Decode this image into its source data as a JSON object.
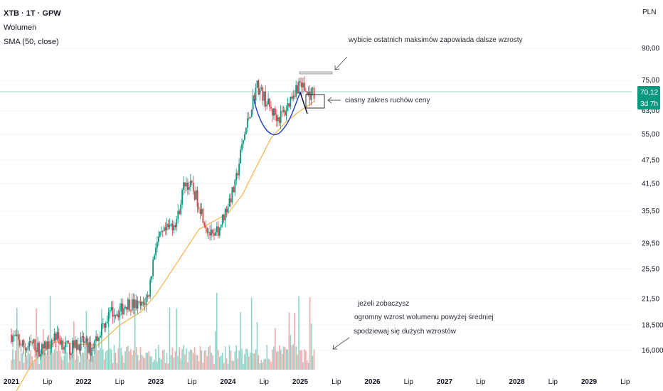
{
  "header": {
    "symbol": "XTB · 1T · GPW",
    "indicator_volume": "Wolumen",
    "indicator_sma": "SMA (50, close)",
    "currency": "PLN"
  },
  "price_badge": {
    "price": "70,12",
    "countdown": "3d 7h"
  },
  "colors": {
    "up": "#089981",
    "down": "#f23645",
    "vol_up": "#8fd3c7",
    "vol_down": "#f7a9a9",
    "sma": "#f7a52a",
    "cup": "#2443c8",
    "last_price_line": "#9fd9cf",
    "badge": "#089981"
  },
  "annotations": [
    {
      "text": "wybicie ostatnich maksimów zapowiada dalsze wzrosty"
    },
    {
      "text": "ciasny zakres ruchów ceny"
    },
    {
      "text": "jeżeli zobaczysz"
    },
    {
      "text": "ogromny wzrost wolumenu powyżej średniej"
    },
    {
      "text": "spodziewaj się dużych wzrostów"
    }
  ],
  "chart_data": {
    "type": "candlestick",
    "title": "",
    "y_scale": "log",
    "y_ticks": [
      "90,00",
      "75,00",
      "63,00",
      "55,00",
      "47,50",
      "41,50",
      "35,50",
      "29,50",
      "25,50",
      "21,50",
      "18,500",
      "16,000"
    ],
    "y_tick_values": [
      90,
      75,
      63,
      55,
      47.5,
      41.5,
      35.5,
      29.5,
      25.5,
      21.5,
      18.5,
      16
    ],
    "x_ticks": [
      "2021",
      "Lip",
      "2022",
      "Lip",
      "2023",
      "Lip",
      "2024",
      "Lip",
      "2025",
      "Lip",
      "2026",
      "Lip",
      "2027",
      "Lip",
      "2028",
      "Lip",
      "2029",
      "Lip"
    ],
    "x_tick_dates": [
      "2021-01",
      "2021-07",
      "2022-01",
      "2022-07",
      "2023-01",
      "2023-07",
      "2024-01",
      "2024-07",
      "2025-01",
      "2025-07",
      "2026-01",
      "2026-07",
      "2027-01",
      "2027-07",
      "2028-01",
      "2028-07",
      "2029-01",
      "2029-07"
    ],
    "last_price": 70.12,
    "price_path_weekly_close": [
      [
        2021.0,
        17.5
      ],
      [
        2021.1,
        16.8
      ],
      [
        2021.2,
        16.2
      ],
      [
        2021.3,
        16.6
      ],
      [
        2021.4,
        16.0
      ],
      [
        2021.5,
        16.5
      ],
      [
        2021.6,
        17.5
      ],
      [
        2021.7,
        16.8
      ],
      [
        2021.8,
        16.1
      ],
      [
        2021.9,
        16.5
      ],
      [
        2022.0,
        16.8
      ],
      [
        2022.1,
        16.0
      ],
      [
        2022.2,
        17.5
      ],
      [
        2022.3,
        19.0
      ],
      [
        2022.4,
        20.0
      ],
      [
        2022.5,
        20.0
      ],
      [
        2022.6,
        21.0
      ],
      [
        2022.7,
        20.8
      ],
      [
        2022.8,
        20.5
      ],
      [
        2022.9,
        22.0
      ],
      [
        2023.0,
        29.5
      ],
      [
        2023.1,
        31.0
      ],
      [
        2023.2,
        32.5
      ],
      [
        2023.3,
        34.0
      ],
      [
        2023.4,
        42.0
      ],
      [
        2023.5,
        40.5
      ],
      [
        2023.6,
        37.0
      ],
      [
        2023.7,
        32.5
      ],
      [
        2023.8,
        30.0
      ],
      [
        2023.9,
        33.0
      ],
      [
        2024.0,
        37.0
      ],
      [
        2024.1,
        41.0
      ],
      [
        2024.2,
        52.0
      ],
      [
        2024.3,
        62.0
      ],
      [
        2024.4,
        73.0
      ],
      [
        2024.5,
        68.0
      ],
      [
        2024.6,
        63.0
      ],
      [
        2024.7,
        60.5
      ],
      [
        2024.8,
        63.0
      ],
      [
        2024.9,
        70.0
      ],
      [
        2025.0,
        74.0
      ],
      [
        2025.1,
        69.0
      ],
      [
        2025.2,
        70.1
      ]
    ],
    "sma50_path": [
      [
        2021.05,
        12.5
      ],
      [
        2021.3,
        15.0
      ],
      [
        2021.6,
        16.8
      ],
      [
        2021.9,
        16.6
      ],
      [
        2022.2,
        16.5
      ],
      [
        2022.5,
        18.5
      ],
      [
        2022.8,
        20.0
      ],
      [
        2023.0,
        22.0
      ],
      [
        2023.3,
        26.5
      ],
      [
        2023.6,
        32.0
      ],
      [
        2023.8,
        33.5
      ],
      [
        2024.0,
        35.0
      ],
      [
        2024.2,
        39.0
      ],
      [
        2024.4,
        46.0
      ],
      [
        2024.6,
        54.0
      ],
      [
        2024.8,
        59.0
      ],
      [
        2025.0,
        63.0
      ],
      [
        2025.2,
        66.5
      ]
    ],
    "volume_note": "volume bars at bottom of price pane, coloured by candle direction"
  }
}
